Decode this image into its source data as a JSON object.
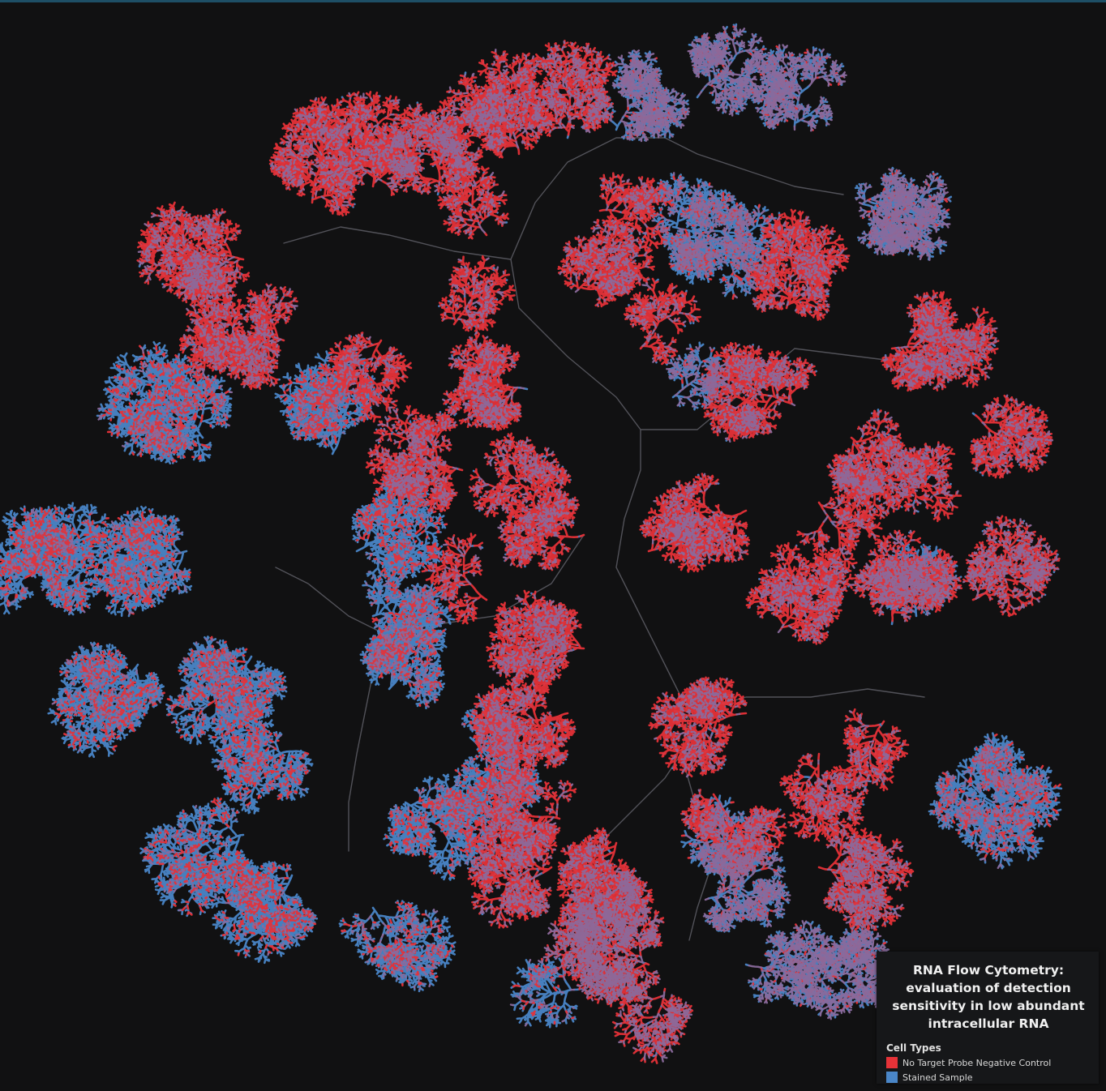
{
  "legend": {
    "title": "RNA Flow Cytometry: evaluation of detection sensitivity in low abundant intracellular RNA",
    "heading": "Cell Types",
    "items": [
      {
        "label": "No Target Probe Negative Control",
        "color": "#e63238"
      },
      {
        "label": "Stained Sample",
        "color": "#4a86c8"
      }
    ]
  },
  "colors": {
    "background": "#111112",
    "negative_control": "#e63238",
    "stained_sample": "#4a86c8",
    "mixed": "#8a6a9c",
    "trunk": "#5a5a62"
  }
}
